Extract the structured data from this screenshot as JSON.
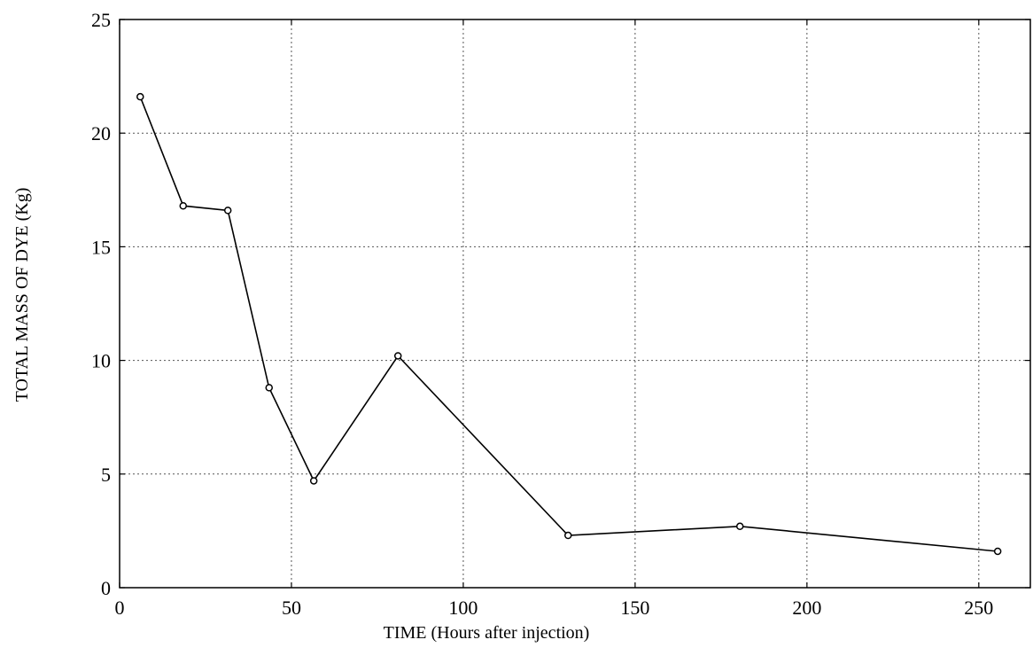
{
  "chart_data": {
    "type": "line",
    "title": "",
    "xlabel": "TIME (Hours after injection)",
    "ylabel": "TOTAL MASS OF DYE (Kg)",
    "xlim": [
      0,
      265
    ],
    "ylim": [
      0,
      25
    ],
    "x_ticks": [
      0,
      50,
      100,
      150,
      200,
      250
    ],
    "y_ticks": [
      0,
      5,
      10,
      15,
      20,
      25
    ],
    "grid": true,
    "legend": "none",
    "series": [
      {
        "x": [
          6,
          18.5,
          31.5,
          43.5,
          56.5,
          81,
          130.5,
          180.5,
          255.5
        ],
        "y": [
          21.6,
          16.8,
          16.6,
          8.8,
          4.7,
          10.2,
          2.3,
          2.7,
          1.6
        ]
      }
    ]
  }
}
